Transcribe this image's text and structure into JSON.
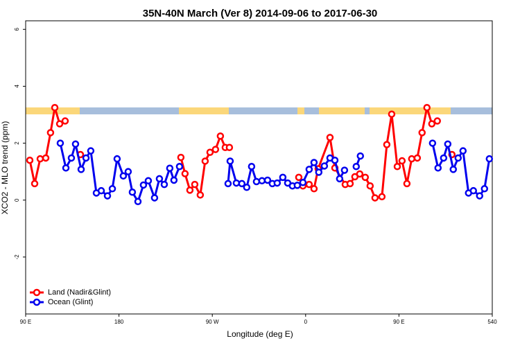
{
  "chart_data": {
    "type": "line",
    "title": "35N-40N March (Ver 8)   2014-09-06 to 2017-06-30",
    "xlabel": "Longitude (deg E)",
    "ylabel": "XCO2 - MLO trend (ppm)",
    "xlim": [
      90,
      540
    ],
    "xticks": [
      {
        "value": 90,
        "label": "90 E"
      },
      180,
      {
        "value": 270,
        "label": "90 W"
      },
      {
        "value": 360,
        "label": "0"
      },
      {
        "value": 450,
        "label": "90 E"
      },
      540
    ],
    "ylim": [
      -4,
      6.3
    ],
    "yticks": [
      -2,
      0,
      2,
      4,
      6
    ],
    "legend": "bottom-left",
    "series": [
      {
        "name": "Land (Nadir&Glint)",
        "color": "#ff0000",
        "x": [
          94.0,
          98.7,
          104.0,
          109.4,
          114.0,
          118.1,
          122.8,
          128.1,
          null,
          142.8,
          null,
          239.7,
          243.7,
          248.4,
          253.1,
          258.4,
          263.1,
          267.8,
          273.1,
          277.8,
          282.5,
          286.5,
          null,
          353.4,
          357.4,
          363.4,
          368.1,
          372.1,
          383.5,
          388.2,
          398.2,
          402.9,
          407.5,
          412.2,
          417.5,
          422.2,
          426.9,
          433.6,
          438.3,
          443.0,
          448.4,
          453.0,
          457.7,
          462.3,
          467.7,
          472.3,
          477.0,
          481.7,
          487.0,
          null,
          501.1
        ],
        "values": [
          1.4,
          0.58,
          1.45,
          1.48,
          2.37,
          3.25,
          2.68,
          2.78,
          null,
          1.6,
          null,
          1.5,
          0.93,
          0.35,
          0.55,
          0.18,
          1.37,
          1.68,
          1.78,
          2.25,
          1.85,
          1.85,
          null,
          0.8,
          0.5,
          0.55,
          0.4,
          1.1,
          2.2,
          1.13,
          0.55,
          0.58,
          0.82,
          0.92,
          0.8,
          0.5,
          0.08,
          0.12,
          1.95,
          3.02,
          1.18,
          1.38,
          0.58,
          1.45,
          1.48,
          2.37,
          3.25,
          2.68,
          2.78,
          null,
          1.6
        ]
      },
      {
        "name": "Ocean (Glint)",
        "color": "#0000ee",
        "x": [
          123.4,
          128.8,
          134.1,
          138.1,
          143.5,
          148.2,
          152.8,
          158.2,
          162.9,
          168.9,
          173.6,
          178.2,
          184.2,
          188.9,
          192.9,
          198.3,
          203.6,
          208.3,
          214.3,
          219.0,
          223.7,
          229.0,
          233.0,
          238.4,
          null,
          285.2,
          287.2,
          293.2,
          298.5,
          303.2,
          307.9,
          312.6,
          317.9,
          323.3,
          327.9,
          332.6,
          338.0,
          342.7,
          347.3,
          352.0,
          357.4,
          363.4,
          368.1,
          372.7,
          378.1,
          383.5,
          388.2,
          392.8,
          397.5,
          null,
          408.8,
          412.8,
          null,
          482.4,
          487.7,
          493.1,
          497.1,
          502.4,
          507.1,
          511.8,
          517.1,
          521.8,
          527.8,
          532.5,
          537.2
        ],
        "values": [
          2.0,
          1.13,
          1.48,
          1.97,
          1.08,
          1.48,
          1.73,
          0.25,
          0.33,
          0.15,
          0.4,
          1.45,
          0.85,
          1.0,
          0.28,
          -0.05,
          0.53,
          0.68,
          0.08,
          0.75,
          0.55,
          1.12,
          0.7,
          1.18,
          null,
          0.58,
          1.37,
          0.6,
          0.58,
          0.45,
          1.18,
          0.65,
          0.68,
          0.7,
          0.58,
          0.6,
          0.8,
          0.6,
          0.5,
          0.52,
          0.62,
          1.08,
          1.32,
          0.98,
          1.2,
          1.48,
          1.4,
          0.75,
          1.05,
          null,
          1.18,
          1.55,
          null,
          2.0,
          1.13,
          1.48,
          1.97,
          1.08,
          1.48,
          1.73,
          0.25,
          0.33,
          0.15,
          0.4,
          1.45
        ]
      }
    ]
  }
}
